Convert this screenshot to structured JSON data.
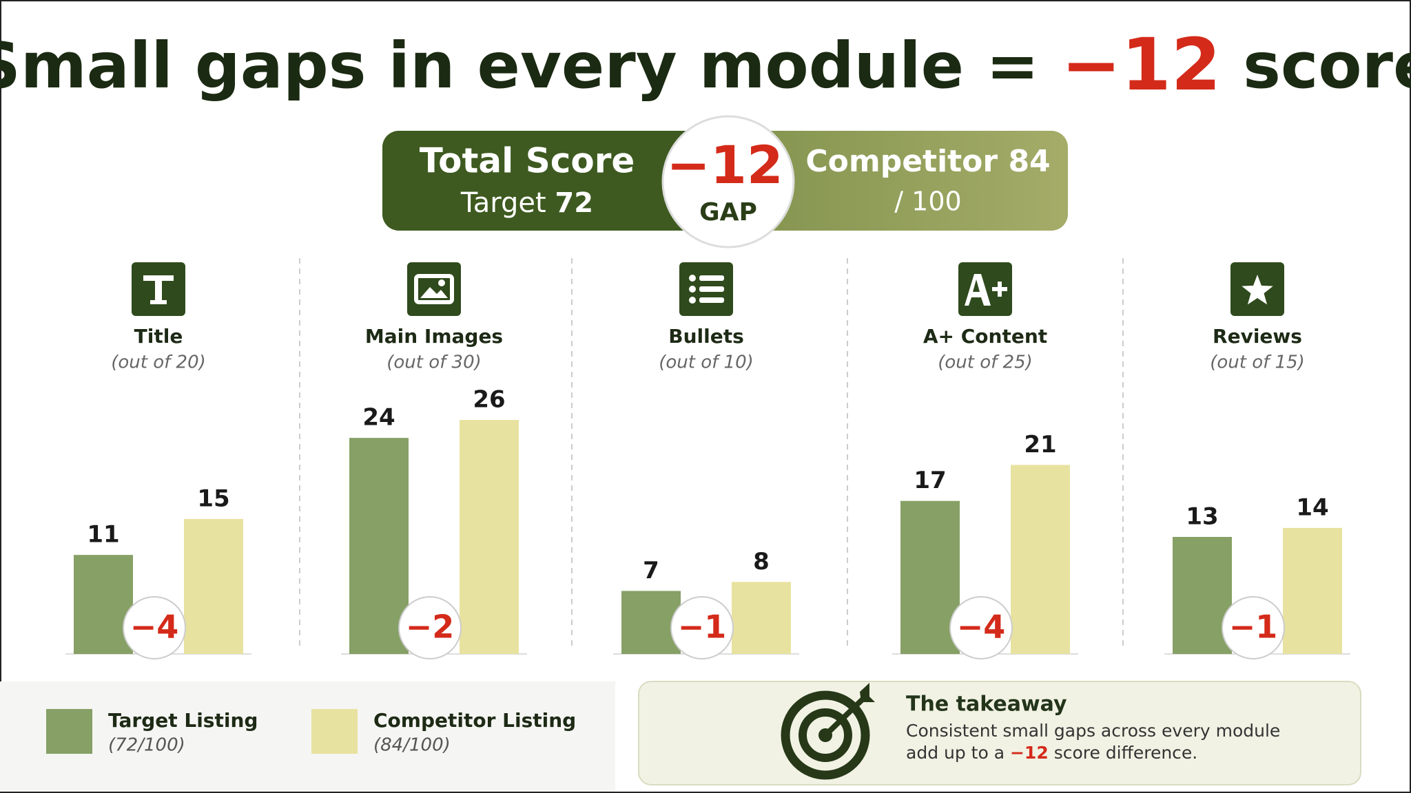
{
  "header": {
    "title": "Small gaps in every module =",
    "title_gap": "−12",
    "title_end": "score"
  },
  "score_box": {
    "label": "Total Score",
    "target_label": "Target",
    "target_value": 72,
    "gap": "−12",
    "gap_label": "GAP",
    "competitor_label": "Competitor",
    "competitor_value": 84,
    "out_of": "/ 100"
  },
  "chart_data": {
    "type": "bar",
    "categories": [
      "Title",
      "Main Images",
      "Bullets",
      "A+ Content",
      "Reviews"
    ],
    "category_notes": [
      "(out of 20)",
      "(out of 30)",
      "(out of 10)",
      "(out of 25)",
      "(out of 15)"
    ],
    "series": [
      {
        "name": "Target Listing",
        "note": "(72/100)",
        "color": "#86a065",
        "values": [
          11,
          24,
          7,
          17,
          13
        ]
      },
      {
        "name": "Competitor Listing",
        "note": "(84/100)",
        "color": "#e8e2a0",
        "values": [
          15,
          26,
          8,
          21,
          14
        ]
      }
    ],
    "gaps": {
      "color": "#d42a1a",
      "values": [
        -4,
        -2,
        -1,
        -4,
        -1
      ],
      "value_labels": [
        "−4",
        "−2",
        "−1",
        "−4",
        "−1"
      ]
    }
  },
  "takeaway": {
    "heading": "The takeaway",
    "line1": "Consistent small gaps across every module",
    "line2_start": "add up to a",
    "line2_gap": "−12",
    "line2_end": "score difference."
  }
}
